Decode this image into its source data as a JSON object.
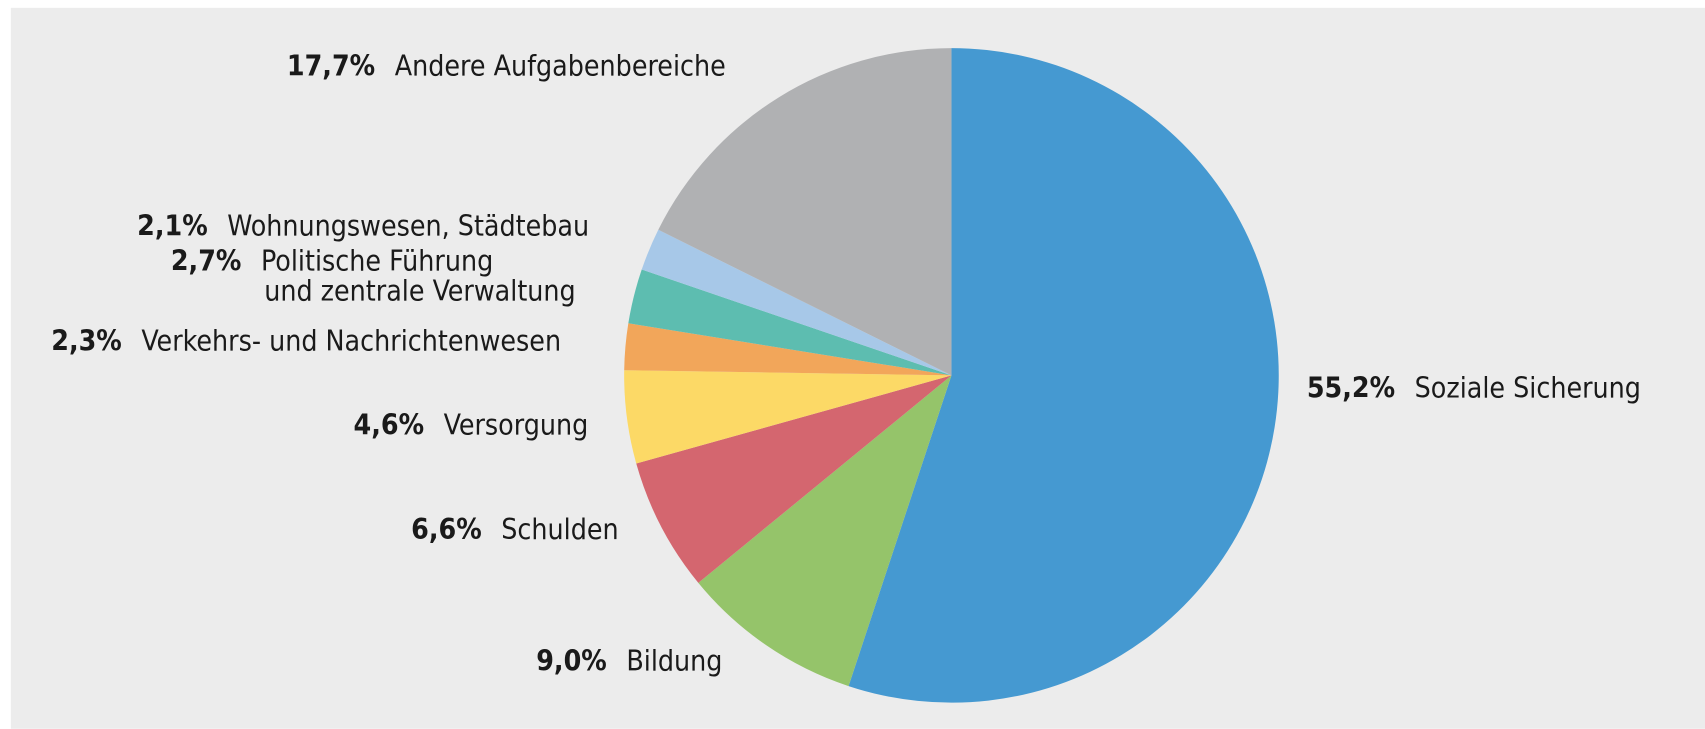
{
  "chart_data": {
    "type": "pie",
    "categories": [
      "Soziale Sicherung",
      "Bildung",
      "Schulden",
      "Versorgung",
      "Verkehrs- und Nachrichtenwesen",
      "Politische Führung\nund zentrale Verwaltung",
      "Wohnungswesen, Städtebau",
      "Andere Aufgabenbereiche"
    ],
    "values": [
      55.2,
      9.0,
      6.6,
      4.6,
      2.3,
      2.7,
      2.1,
      17.7
    ],
    "value_labels": [
      "55,2%",
      "9,0%",
      "6,6%",
      "4,6%",
      "2,3%",
      "2,7%",
      "2,1%",
      "17,7%"
    ],
    "colors": [
      "#4599d1",
      "#95c46a",
      "#d4666f",
      "#fcd966",
      "#f2a65a",
      "#5dbdb0",
      "#a7c8e8",
      "#b0b1b3"
    ]
  }
}
